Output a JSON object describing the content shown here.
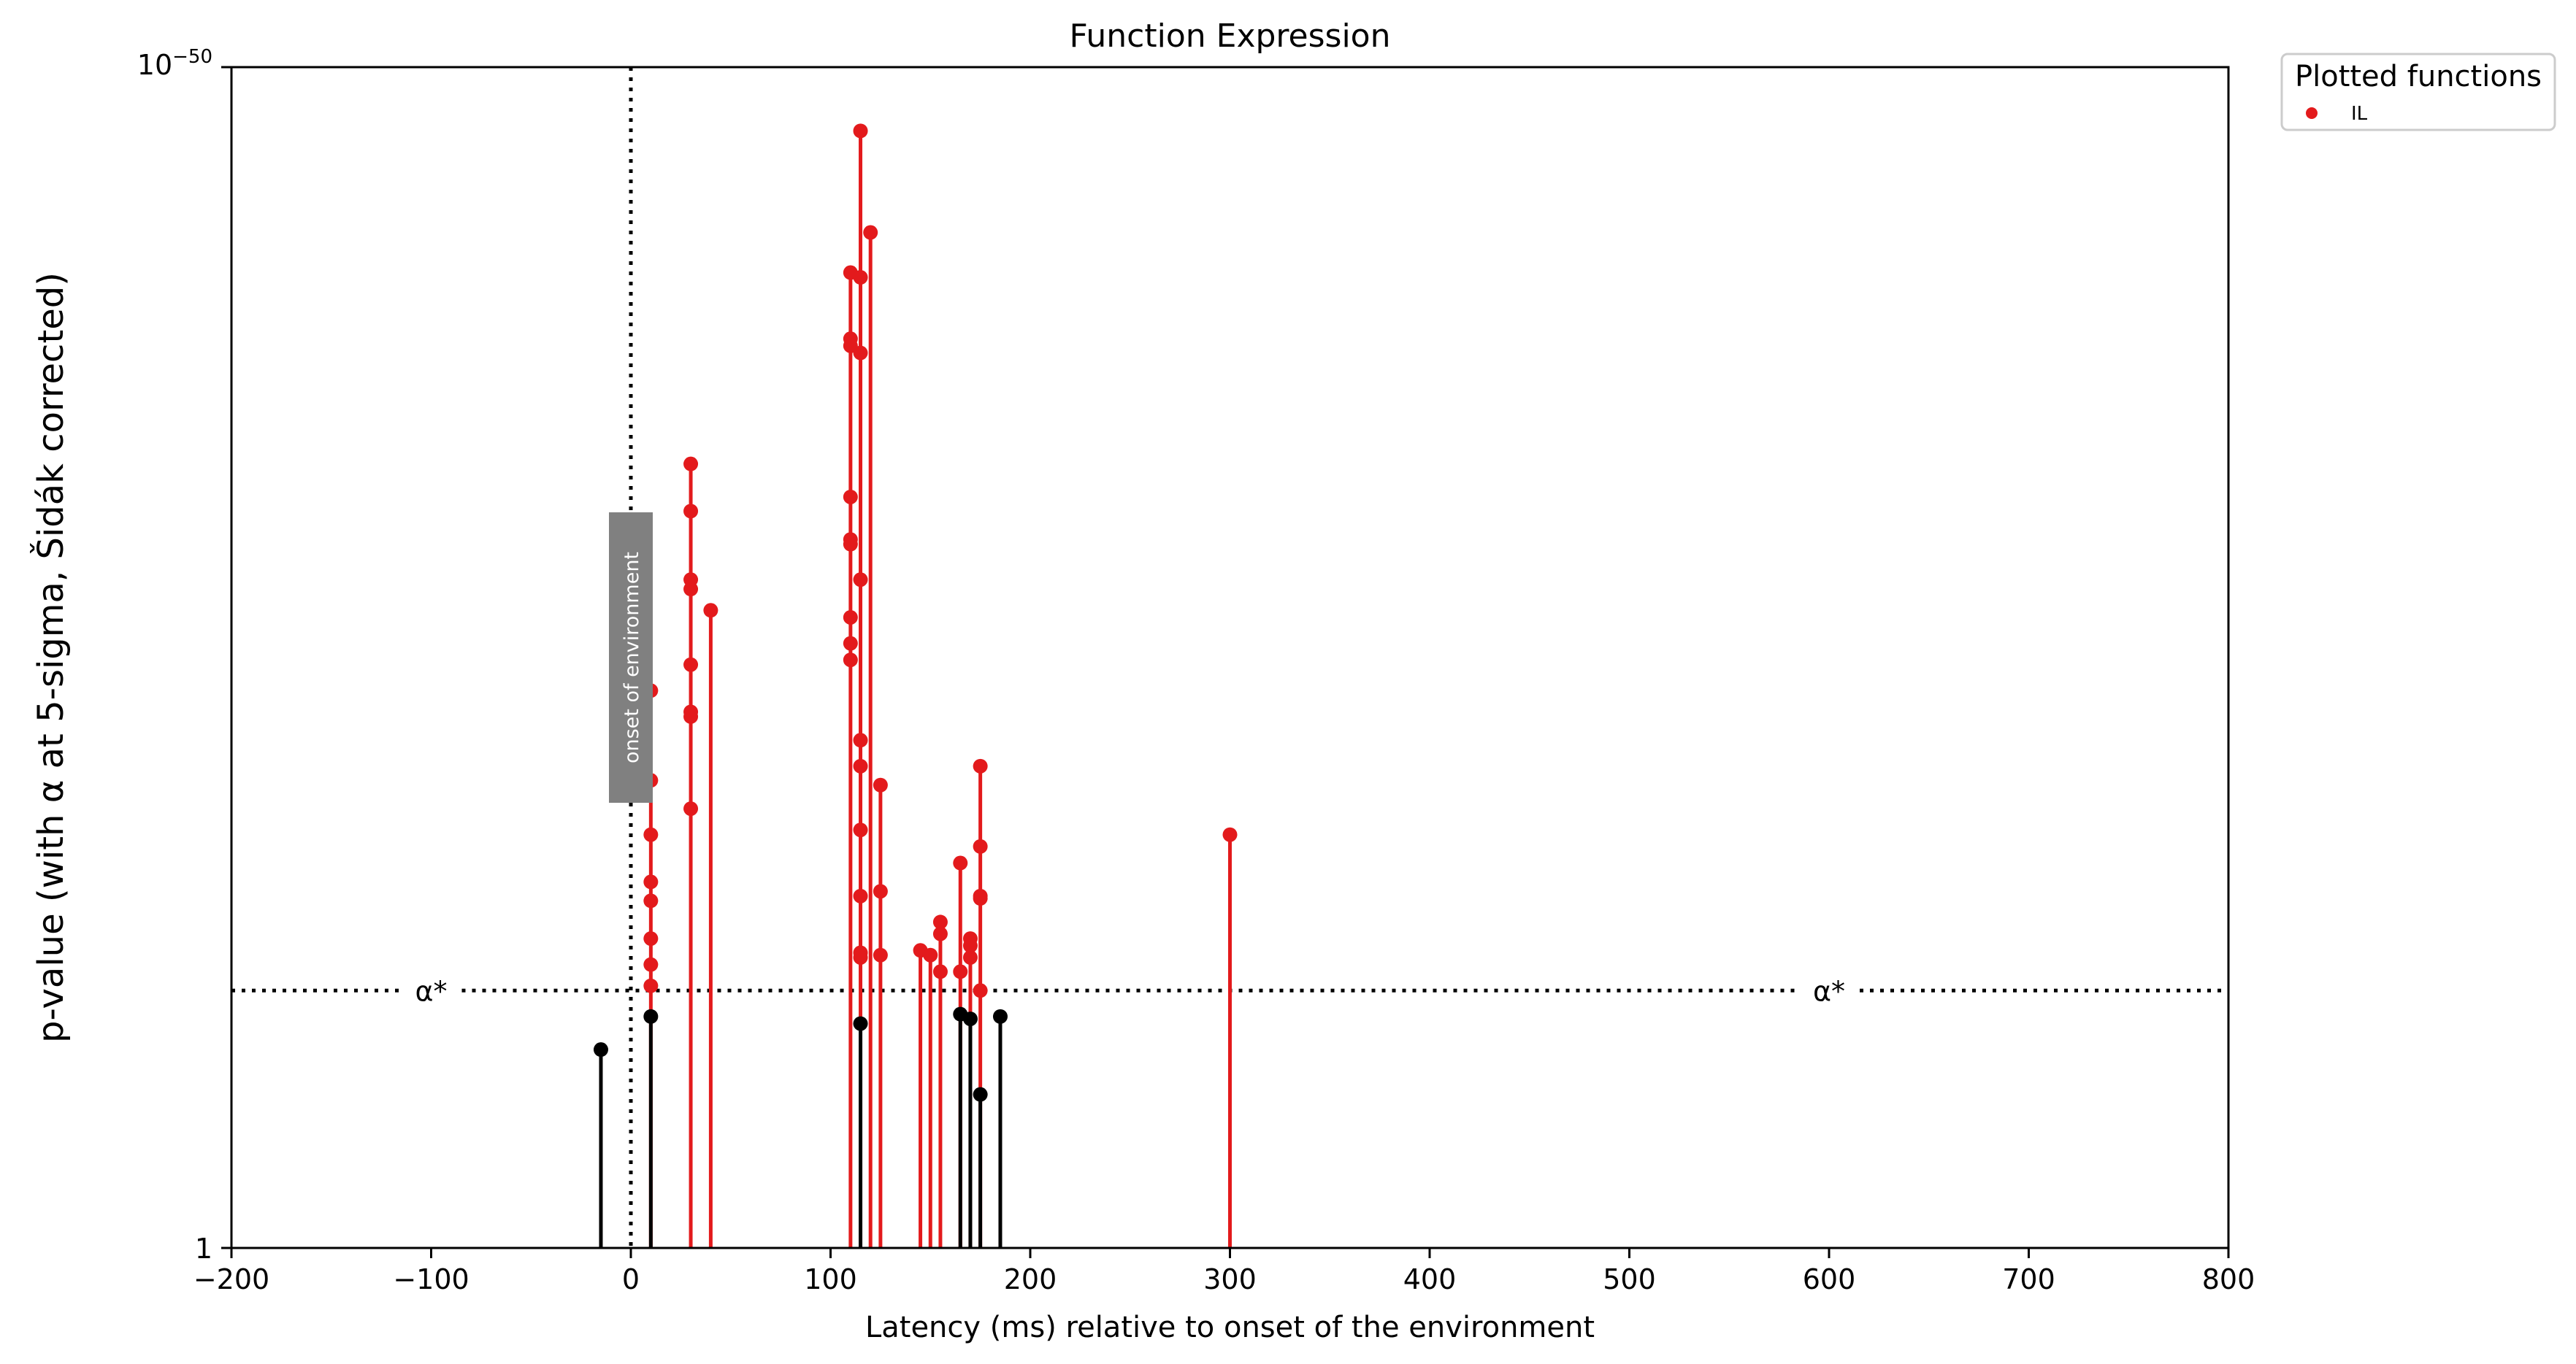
{
  "chart_data": {
    "type": "scatter",
    "title": "Function Expression",
    "xlabel": "Latency (ms) relative to onset of the environment",
    "ylabel": "p-value (with α at 5-sigma, Šidák corrected)",
    "xlim": [
      -200,
      800
    ],
    "x_ticks": [
      -200,
      -100,
      0,
      100,
      200,
      300,
      400,
      500,
      600,
      700,
      800
    ],
    "x_tick_labels": [
      "−200",
      "−100",
      "0",
      "100",
      "200",
      "300",
      "400",
      "500",
      "600",
      "700",
      "800"
    ],
    "y_scale": "log (-log10 p, inverted)",
    "y_range_neglog10": [
      0,
      50
    ],
    "y_tick_top_base": "10",
    "y_tick_top_exp": "−50",
    "y_tick_bottom": "1",
    "alpha_neglog10": 10.9,
    "alpha_label": "α*",
    "onset_x": 0,
    "onset_label": "onset of environment",
    "legend": {
      "title": "Plotted functions",
      "entries": [
        "IL"
      ],
      "placement": "outside top-right"
    },
    "colors": {
      "significant": "#e31a1c",
      "nonsignificant": "#000000"
    },
    "significant_points": [
      [
        10,
        23.6
      ],
      [
        10,
        19.8
      ],
      [
        10,
        17.5
      ],
      [
        10,
        15.5
      ],
      [
        10,
        14.7
      ],
      [
        10,
        13.1
      ],
      [
        10,
        12.0
      ],
      [
        10,
        11.1
      ],
      [
        30,
        33.2
      ],
      [
        30,
        31.2
      ],
      [
        30,
        28.3
      ],
      [
        30,
        27.9
      ],
      [
        30,
        24.7
      ],
      [
        30,
        22.7
      ],
      [
        30,
        22.5
      ],
      [
        30,
        18.6
      ],
      [
        40,
        27.0
      ],
      [
        110,
        41.3
      ],
      [
        110,
        38.5
      ],
      [
        110,
        38.2
      ],
      [
        110,
        31.8
      ],
      [
        110,
        30.0
      ],
      [
        110,
        29.8
      ],
      [
        110,
        26.7
      ],
      [
        110,
        25.6
      ],
      [
        110,
        24.9
      ],
      [
        115,
        47.3
      ],
      [
        115,
        41.1
      ],
      [
        115,
        37.9
      ],
      [
        115,
        28.3
      ],
      [
        115,
        21.5
      ],
      [
        115,
        20.4
      ],
      [
        115,
        17.7
      ],
      [
        115,
        14.9
      ],
      [
        115,
        12.5
      ],
      [
        115,
        12.3
      ],
      [
        120,
        43.0
      ],
      [
        125,
        19.6
      ],
      [
        125,
        15.1
      ],
      [
        125,
        12.4
      ],
      [
        145,
        12.6
      ],
      [
        150,
        12.4
      ],
      [
        155,
        13.8
      ],
      [
        155,
        13.3
      ],
      [
        155,
        11.7
      ],
      [
        165,
        16.3
      ],
      [
        165,
        11.7
      ],
      [
        170,
        13.1
      ],
      [
        170,
        12.8
      ],
      [
        170,
        12.3
      ],
      [
        175,
        20.4
      ],
      [
        175,
        17.0
      ],
      [
        175,
        14.9
      ],
      [
        175,
        14.8
      ],
      [
        175,
        10.9
      ],
      [
        300,
        17.5
      ]
    ],
    "nonsignificant_points": [
      [
        -15,
        8.4
      ],
      [
        10,
        9.8
      ],
      [
        115,
        9.5
      ],
      [
        165,
        9.9
      ],
      [
        170,
        9.7
      ],
      [
        175,
        6.5
      ],
      [
        185,
        9.8
      ]
    ]
  }
}
